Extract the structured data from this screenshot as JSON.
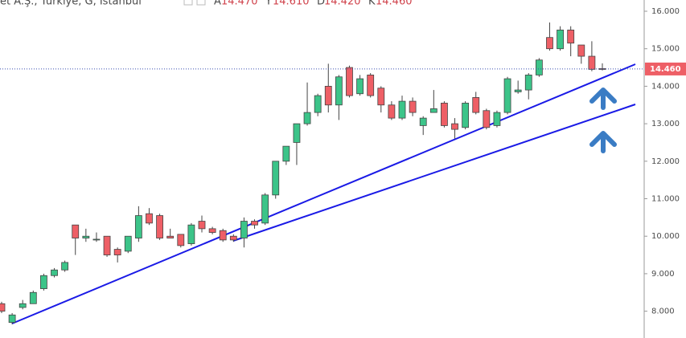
{
  "header": {
    "symbol": "et A.Ş., Türkiye, G, İstanbul",
    "ohlc": [
      {
        "key": "A",
        "value": "14.470"
      },
      {
        "key": "Y",
        "value": "14.610"
      },
      {
        "key": "D",
        "value": "14.420"
      },
      {
        "key": "K",
        "value": "14.460"
      }
    ]
  },
  "chart_data": {
    "type": "candlestick",
    "categories": [
      null,
      null,
      null,
      null,
      null,
      null,
      null,
      null,
      null,
      null,
      null,
      null,
      null,
      null,
      null,
      null,
      null,
      null,
      null,
      null,
      null,
      null,
      null,
      null,
      null,
      null,
      null,
      null,
      null,
      null,
      null,
      null,
      null,
      null,
      null,
      null,
      null,
      null,
      null,
      null,
      null,
      null,
      null,
      null,
      null,
      null,
      null,
      null,
      null,
      null,
      null,
      null,
      null,
      null,
      null,
      null,
      null,
      null
    ],
    "open": [
      8.2,
      7.7,
      8.1,
      8.2,
      8.6,
      8.95,
      9.1,
      10.3,
      9.95,
      9.9,
      10.0,
      9.65,
      9.6,
      9.95,
      10.6,
      10.55,
      10.0,
      10.05,
      9.8,
      10.4,
      10.2,
      10.15,
      10.0,
      9.95,
      10.4,
      10.35,
      11.1,
      12.0,
      12.5,
      13.0,
      13.3,
      14.0,
      13.5,
      14.5,
      13.8,
      14.3,
      13.95,
      13.5,
      13.15,
      13.6,
      12.95,
      13.3,
      13.55,
      13.0,
      12.9,
      13.7,
      13.35,
      12.95,
      13.3,
      13.85,
      13.9,
      14.3,
      15.3,
      15.0,
      15.5,
      15.1,
      14.8,
      14.47
    ],
    "high": [
      8.25,
      7.95,
      8.3,
      8.55,
      9.0,
      9.15,
      9.35,
      10.3,
      10.2,
      10.1,
      10.0,
      9.7,
      10.0,
      10.8,
      10.75,
      10.6,
      10.2,
      10.05,
      10.35,
      10.55,
      10.25,
      10.2,
      10.05,
      10.5,
      10.45,
      11.15,
      12.0,
      12.4,
      13.0,
      14.1,
      13.8,
      14.6,
      14.3,
      14.55,
      14.3,
      14.35,
      14.0,
      13.6,
      13.75,
      13.7,
      13.2,
      13.9,
      13.6,
      13.15,
      13.6,
      13.85,
      13.4,
      13.35,
      14.25,
      14.15,
      14.35,
      14.75,
      15.7,
      15.6,
      15.6,
      15.1,
      15.2,
      14.61
    ],
    "low": [
      7.95,
      7.65,
      8.05,
      8.2,
      8.55,
      8.9,
      9.05,
      9.5,
      9.85,
      9.85,
      9.45,
      9.3,
      9.55,
      9.85,
      10.3,
      9.9,
      9.95,
      9.7,
      9.75,
      10.1,
      10.05,
      9.85,
      9.85,
      9.7,
      10.2,
      10.3,
      11.0,
      11.9,
      11.9,
      12.95,
      13.2,
      13.3,
      13.1,
      13.7,
      13.75,
      13.7,
      13.3,
      13.1,
      13.1,
      13.2,
      12.7,
      13.3,
      12.9,
      12.6,
      12.85,
      13.25,
      12.85,
      12.9,
      13.25,
      13.8,
      13.65,
      14.25,
      14.95,
      14.95,
      14.8,
      14.6,
      14.4,
      14.42
    ],
    "close": [
      8.0,
      7.9,
      8.2,
      8.5,
      8.95,
      9.1,
      9.3,
      9.95,
      10.0,
      9.92,
      9.5,
      9.5,
      10.0,
      10.55,
      10.35,
      9.95,
      9.95,
      9.75,
      10.3,
      10.2,
      10.1,
      9.9,
      9.9,
      10.4,
      10.3,
      11.1,
      12.0,
      12.4,
      13.0,
      13.3,
      13.75,
      13.5,
      14.25,
      13.75,
      14.2,
      13.75,
      13.5,
      13.15,
      13.6,
      13.3,
      13.15,
      13.4,
      12.95,
      12.85,
      13.55,
      13.3,
      12.9,
      13.3,
      14.2,
      13.9,
      14.3,
      14.7,
      15.0,
      15.5,
      15.15,
      14.8,
      14.45,
      14.46
    ],
    "up_color": "#3cc489",
    "down_color": "#ee5f66",
    "last_price": {
      "value": 14.46,
      "label": "14.460"
    },
    "ylim": [
      7.285,
      16.3
    ],
    "yticks": [
      {
        "value": 8,
        "label": "8.000"
      },
      {
        "value": 9,
        "label": "9.000"
      },
      {
        "value": 10,
        "label": "10.000"
      },
      {
        "value": 11,
        "label": "11.000"
      },
      {
        "value": 12,
        "label": "12.000"
      },
      {
        "value": 13,
        "label": "13.000"
      },
      {
        "value": 14,
        "label": "14.000"
      },
      {
        "value": 15,
        "label": "15.000"
      },
      {
        "value": 16,
        "label": "16.000"
      }
    ]
  }
}
